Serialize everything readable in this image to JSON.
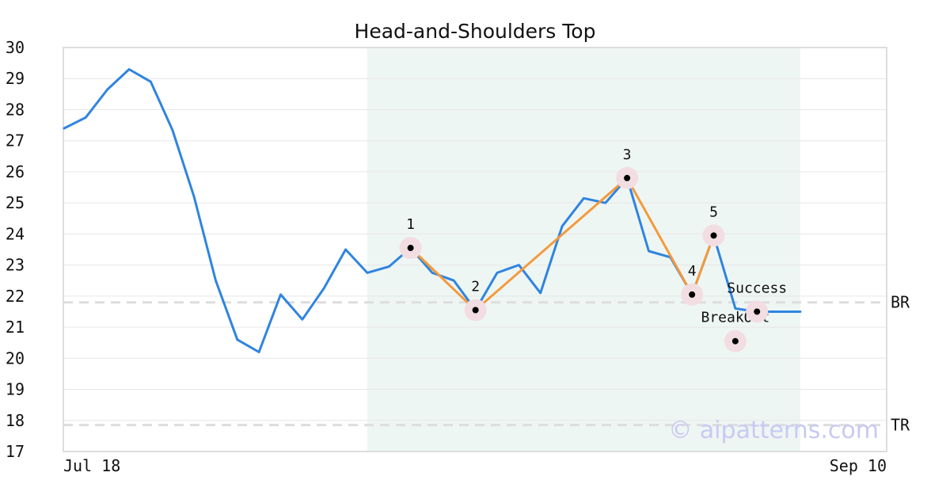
{
  "chart_data": {
    "type": "line",
    "title": "Head-and-Shoulders Top",
    "xlabel": "",
    "ylabel": "",
    "ylim": [
      17,
      30
    ],
    "grid": true,
    "x_start_label": "Jul 18",
    "x_end_label": "Sep 10",
    "x_tick_labels": [
      "Jul 18",
      "Sep 10"
    ],
    "y_ticks": [
      17,
      18,
      19,
      20,
      21,
      22,
      23,
      24,
      25,
      26,
      27,
      28,
      29,
      30
    ],
    "series": [
      {
        "name": "",
        "color": "#2f84e0",
        "values": [
          27.4,
          27.75,
          28.65,
          29.3,
          28.9,
          27.35,
          25.2,
          22.5,
          20.6,
          20.2,
          22.05,
          21.25,
          22.25,
          23.5,
          22.75,
          22.95,
          23.55,
          22.75,
          22.5,
          21.55,
          22.75,
          23.0,
          22.1,
          24.25,
          25.15,
          25.0,
          25.8,
          23.45,
          23.25,
          22.05,
          23.95,
          21.6,
          21.5,
          21.5,
          21.5
        ]
      }
    ],
    "pattern": {
      "color": "#f39a3d",
      "marker_color": "#000000",
      "marker_halo_color": "#f2dde2",
      "points": [
        {
          "label": "1",
          "index": 16,
          "value": 23.55
        },
        {
          "label": "2",
          "index": 19,
          "value": 21.55
        },
        {
          "label": "3",
          "index": 26,
          "value": 25.8
        },
        {
          "label": "4",
          "index": 29,
          "value": 22.05
        },
        {
          "label": "5",
          "index": 30,
          "value": 23.95
        }
      ]
    },
    "annotations": [
      {
        "label": "BreakOut",
        "index": 31,
        "value": 20.55
      },
      {
        "label": "Success",
        "index": 32,
        "value": 21.5
      }
    ],
    "reference_lines": [
      {
        "label": "BR",
        "value": 21.8,
        "color": "#dddddd"
      },
      {
        "label": "TR",
        "value": 17.85,
        "color": "#dddddd"
      }
    ],
    "highlight_region": {
      "start_index": 14,
      "end_index": 34,
      "color": "#eef6f3"
    },
    "watermark": "© aipatterns.com"
  }
}
